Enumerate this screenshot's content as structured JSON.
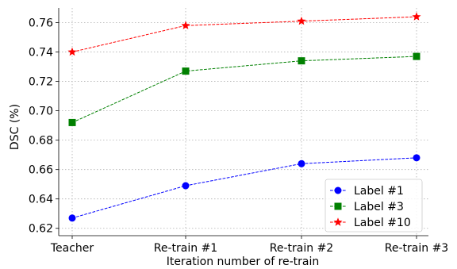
{
  "chart_data": {
    "type": "line",
    "xlabel": "Iteration number of re-train",
    "ylabel": "DSC (%)",
    "categories": [
      "Teacher",
      "Re-train #1",
      "Re-train #2",
      "Re-train #3"
    ],
    "ylim": [
      0.615,
      0.77
    ],
    "yticks": [
      "0.62",
      "0.64",
      "0.66",
      "0.68",
      "0.70",
      "0.72",
      "0.74",
      "0.76"
    ],
    "grid": true,
    "legend_position": "bottom-right",
    "series": [
      {
        "name": "Label #1",
        "color": "#0000ff",
        "marker": "circle",
        "values": [
          0.627,
          0.649,
          0.664,
          0.668
        ]
      },
      {
        "name": "Label #3",
        "color": "#008000",
        "marker": "square",
        "values": [
          0.692,
          0.727,
          0.734,
          0.737
        ]
      },
      {
        "name": "Label #10",
        "color": "#ff0000",
        "marker": "star",
        "values": [
          0.74,
          0.758,
          0.761,
          0.764
        ]
      }
    ]
  }
}
